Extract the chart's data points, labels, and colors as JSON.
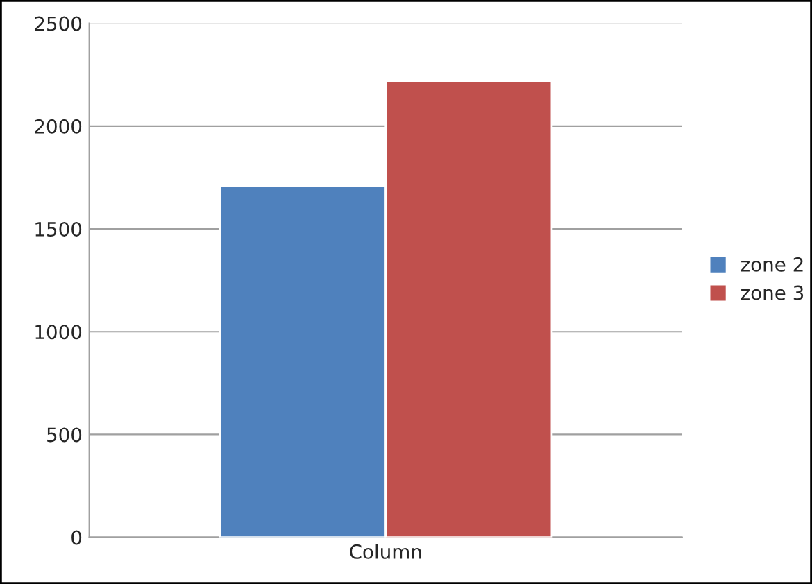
{
  "chart_data": {
    "type": "bar",
    "categories": [
      "Column"
    ],
    "series": [
      {
        "name": "zone 2",
        "color": "#4f81bd",
        "values": [
          1710
        ]
      },
      {
        "name": "zone 3",
        "color": "#c0504d",
        "values": [
          2220
        ]
      }
    ],
    "ylim": [
      0,
      2500
    ],
    "yticks": [
      0,
      500,
      1000,
      1500,
      2000,
      2500
    ],
    "grid": "y",
    "legend": "right"
  }
}
